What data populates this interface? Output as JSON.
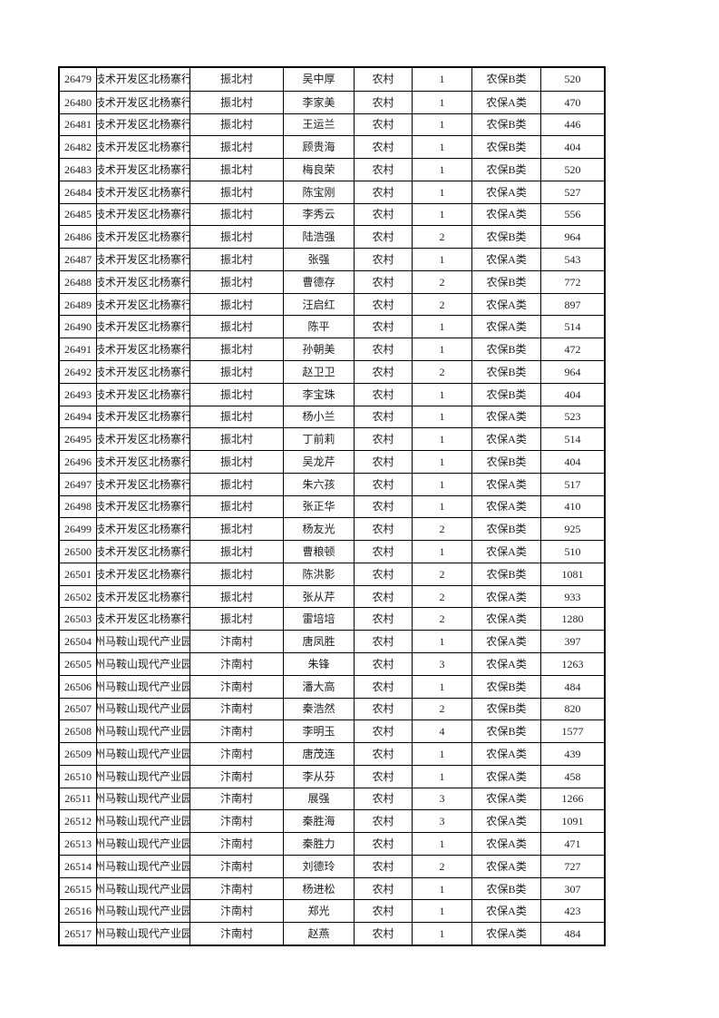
{
  "page": {
    "background_color": "#ffffff",
    "text_color": "#1c1c1c",
    "border_color": "#000000"
  },
  "table": {
    "has_header_row": false,
    "column_keys": [
      "id",
      "unit",
      "village",
      "name",
      "residence",
      "count",
      "category",
      "amount"
    ],
    "column_semantics": {
      "id": "record-number",
      "unit": "administrative-unit (text clipped at cell edges)",
      "village": "village-name",
      "name": "person-name",
      "residence": "residence-type",
      "count": "person-count",
      "category": "insurance-category",
      "amount": "amount"
    },
    "rows": [
      [
        "26479",
        "技术开发区北杨寨行",
        "振北村",
        "吴中厚",
        "农村",
        "1",
        "农保B类",
        "520"
      ],
      [
        "26480",
        "技术开发区北杨寨行",
        "振北村",
        "李家美",
        "农村",
        "1",
        "农保A类",
        "470"
      ],
      [
        "26481",
        "技术开发区北杨寨行",
        "振北村",
        "王运兰",
        "农村",
        "1",
        "农保B类",
        "446"
      ],
      [
        "26482",
        "技术开发区北杨寨行",
        "振北村",
        "顾贵海",
        "农村",
        "1",
        "农保B类",
        "404"
      ],
      [
        "26483",
        "技术开发区北杨寨行",
        "振北村",
        "梅良荣",
        "农村",
        "1",
        "农保B类",
        "520"
      ],
      [
        "26484",
        "技术开发区北杨寨行",
        "振北村",
        "陈宝刚",
        "农村",
        "1",
        "农保A类",
        "527"
      ],
      [
        "26485",
        "技术开发区北杨寨行",
        "振北村",
        "李秀云",
        "农村",
        "1",
        "农保A类",
        "556"
      ],
      [
        "26486",
        "技术开发区北杨寨行",
        "振北村",
        "陆浩强",
        "农村",
        "2",
        "农保B类",
        "964"
      ],
      [
        "26487",
        "技术开发区北杨寨行",
        "振北村",
        "张强",
        "农村",
        "1",
        "农保A类",
        "543"
      ],
      [
        "26488",
        "技术开发区北杨寨行",
        "振北村",
        "曹德存",
        "农村",
        "2",
        "农保B类",
        "772"
      ],
      [
        "26489",
        "技术开发区北杨寨行",
        "振北村",
        "汪启红",
        "农村",
        "2",
        "农保A类",
        "897"
      ],
      [
        "26490",
        "技术开发区北杨寨行",
        "振北村",
        "陈平",
        "农村",
        "1",
        "农保A类",
        "514"
      ],
      [
        "26491",
        "技术开发区北杨寨行",
        "振北村",
        "孙朝美",
        "农村",
        "1",
        "农保B类",
        "472"
      ],
      [
        "26492",
        "技术开发区北杨寨行",
        "振北村",
        "赵卫卫",
        "农村",
        "2",
        "农保B类",
        "964"
      ],
      [
        "26493",
        "技术开发区北杨寨行",
        "振北村",
        "李宝珠",
        "农村",
        "1",
        "农保B类",
        "404"
      ],
      [
        "26494",
        "技术开发区北杨寨行",
        "振北村",
        "杨小兰",
        "农村",
        "1",
        "农保A类",
        "523"
      ],
      [
        "26495",
        "技术开发区北杨寨行",
        "振北村",
        "丁前莉",
        "农村",
        "1",
        "农保A类",
        "514"
      ],
      [
        "26496",
        "技术开发区北杨寨行",
        "振北村",
        "吴龙芹",
        "农村",
        "1",
        "农保B类",
        "404"
      ],
      [
        "26497",
        "技术开发区北杨寨行",
        "振北村",
        "朱六孩",
        "农村",
        "1",
        "农保A类",
        "517"
      ],
      [
        "26498",
        "技术开发区北杨寨行",
        "振北村",
        "张正华",
        "农村",
        "1",
        "农保A类",
        "410"
      ],
      [
        "26499",
        "技术开发区北杨寨行",
        "振北村",
        "杨友光",
        "农村",
        "2",
        "农保B类",
        "925"
      ],
      [
        "26500",
        "技术开发区北杨寨行",
        "振北村",
        "曹粮顿",
        "农村",
        "1",
        "农保A类",
        "510"
      ],
      [
        "26501",
        "技术开发区北杨寨行",
        "振北村",
        "陈洪影",
        "农村",
        "2",
        "农保B类",
        "1081"
      ],
      [
        "26502",
        "技术开发区北杨寨行",
        "振北村",
        "张从芹",
        "农村",
        "2",
        "农保A类",
        "933"
      ],
      [
        "26503",
        "技术开发区北杨寨行",
        "振北村",
        "雷培培",
        "农村",
        "2",
        "农保A类",
        "1280"
      ],
      [
        "26504",
        "州马鞍山现代产业园",
        "汴南村",
        "唐凤胜",
        "农村",
        "1",
        "农保A类",
        "397"
      ],
      [
        "26505",
        "州马鞍山现代产业园",
        "汴南村",
        "朱锋",
        "农村",
        "3",
        "农保A类",
        "1263"
      ],
      [
        "26506",
        "州马鞍山现代产业园",
        "汴南村",
        "潘大高",
        "农村",
        "1",
        "农保B类",
        "484"
      ],
      [
        "26507",
        "州马鞍山现代产业园",
        "汴南村",
        "秦浩然",
        "农村",
        "2",
        "农保B类",
        "820"
      ],
      [
        "26508",
        "州马鞍山现代产业园",
        "汴南村",
        "李明玉",
        "农村",
        "4",
        "农保B类",
        "1577"
      ],
      [
        "26509",
        "州马鞍山现代产业园",
        "汴南村",
        "唐茂连",
        "农村",
        "1",
        "农保A类",
        "439"
      ],
      [
        "26510",
        "州马鞍山现代产业园",
        "汴南村",
        "李从芬",
        "农村",
        "1",
        "农保A类",
        "458"
      ],
      [
        "26511",
        "州马鞍山现代产业园",
        "汴南村",
        "展强",
        "农村",
        "3",
        "农保A类",
        "1266"
      ],
      [
        "26512",
        "州马鞍山现代产业园",
        "汴南村",
        "秦胜海",
        "农村",
        "3",
        "农保A类",
        "1091"
      ],
      [
        "26513",
        "州马鞍山现代产业园",
        "汴南村",
        "秦胜力",
        "农村",
        "1",
        "农保A类",
        "471"
      ],
      [
        "26514",
        "州马鞍山现代产业园",
        "汴南村",
        "刘德玲",
        "农村",
        "2",
        "农保A类",
        "727"
      ],
      [
        "26515",
        "州马鞍山现代产业园",
        "汴南村",
        "杨进松",
        "农村",
        "1",
        "农保B类",
        "307"
      ],
      [
        "26516",
        "州马鞍山现代产业园",
        "汴南村",
        "郑光",
        "农村",
        "1",
        "农保A类",
        "423"
      ],
      [
        "26517",
        "州马鞍山现代产业园",
        "汴南村",
        "赵燕",
        "农村",
        "1",
        "农保A类",
        "484"
      ]
    ]
  }
}
